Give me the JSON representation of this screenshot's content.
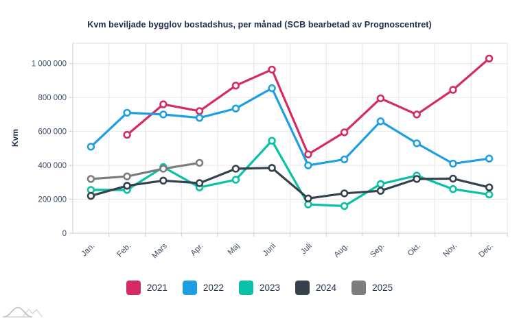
{
  "title": "Kvm beviljade bygglov bostadshus, per månad (SCB bearbetad av Prognoscentret)",
  "chart_data": {
    "type": "line",
    "title": "Kvm beviljade bygglov bostadshus, per månad (SCB bearbetad av Prognoscentret)",
    "xlabel": "",
    "ylabel": "Kvm",
    "categories": [
      "Jan.",
      "Feb.",
      "Mars",
      "Apr.",
      "Maj",
      "Juni",
      "Juli",
      "Aug.",
      "Sep.",
      "Okt.",
      "Nov.",
      "Dec."
    ],
    "ylim": [
      0,
      1120000
    ],
    "yticks": [
      0,
      200000,
      400000,
      600000,
      800000,
      1000000
    ],
    "ytick_labels": [
      "0",
      "200 000",
      "400 000",
      "600 000",
      "800 000",
      "1 000 000"
    ],
    "grid": true,
    "legend_position": "bottom",
    "marker": "open-circle",
    "series": [
      {
        "name": "2021",
        "color": "#d62a64",
        "values": [
          null,
          580000,
          760000,
          720000,
          870000,
          965000,
          465000,
          595000,
          795000,
          700000,
          845000,
          1030000
        ]
      },
      {
        "name": "2022",
        "color": "#1e9ee3",
        "values": [
          510000,
          710000,
          700000,
          680000,
          735000,
          855000,
          400000,
          435000,
          660000,
          530000,
          410000,
          440000
        ]
      },
      {
        "name": "2023",
        "color": "#08c1a6",
        "values": [
          255000,
          255000,
          390000,
          270000,
          315000,
          545000,
          170000,
          160000,
          290000,
          340000,
          260000,
          228000
        ]
      },
      {
        "name": "2024",
        "color": "#36414d",
        "values": [
          220000,
          280000,
          310000,
          295000,
          380000,
          385000,
          205000,
          235000,
          250000,
          320000,
          322000,
          270000
        ]
      },
      {
        "name": "2025",
        "color": "#7d7d7d",
        "values": [
          320000,
          335000,
          380000,
          415000,
          null,
          null,
          null,
          null,
          null,
          null,
          null,
          null
        ]
      }
    ]
  }
}
